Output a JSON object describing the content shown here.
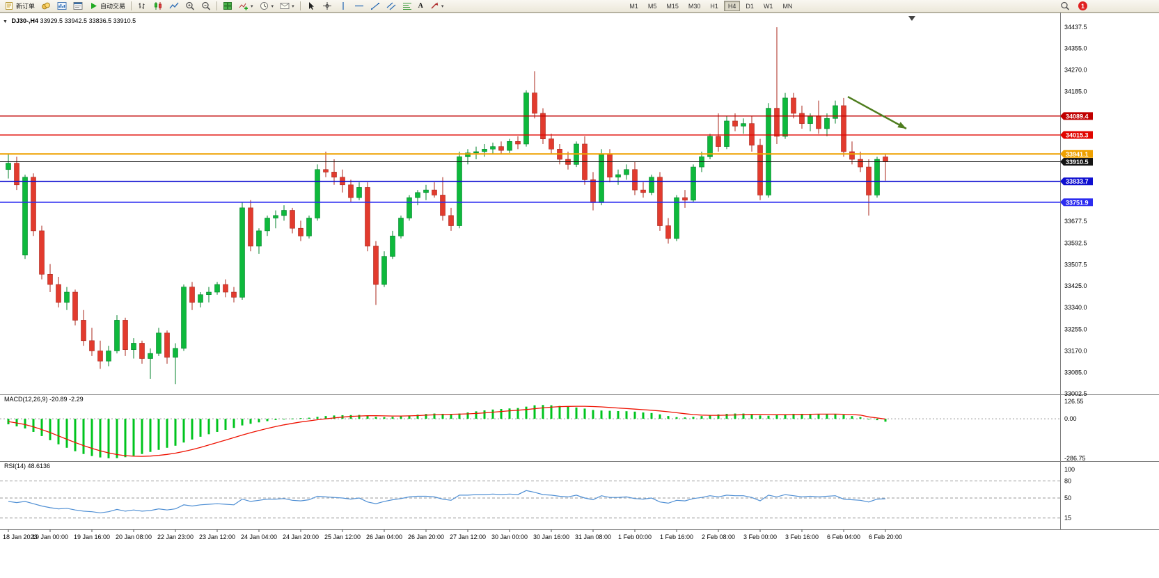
{
  "toolbar": {
    "new_order_label": "新订单",
    "auto_trading_label": "自动交易",
    "text_tool_label": "A",
    "timeframes": [
      "M1",
      "M5",
      "M15",
      "M30",
      "H1",
      "H4",
      "D1",
      "W1",
      "MN"
    ],
    "active_timeframe": "H4",
    "notification_count": "1"
  },
  "chart_header": {
    "symbol_timeframe": "DJ30-,H4",
    "ohlc": "33929.5 33942.5 33836.5 33910.5"
  },
  "macd_header": {
    "label": "MACD(12,26,9)",
    "values": "-20.89 -2.29"
  },
  "rsi_header": {
    "label": "RSI(14)",
    "value": "48.6136"
  },
  "colors": {
    "bull": "#0eb93c",
    "bull_dark": "#00812a",
    "bear": "#e23b2e",
    "bear_dark": "#a8241a",
    "macd_hist": "#00c41e",
    "macd_signal": "#ee1100",
    "rsi_line": "#4f8fd4",
    "axis_text": "#000000"
  },
  "chart_data": [
    {
      "type": "candlestick",
      "symbol": "DJ30-",
      "timeframe": "H4",
      "ylim": [
        33002.5,
        34437.5
      ],
      "y_ticks": [
        34437.5,
        34355.0,
        34270.0,
        34185.0,
        33677.5,
        33592.5,
        33507.5,
        33425.0,
        33340.0,
        33255.0,
        33170.0,
        33085.0,
        33002.5
      ],
      "levels": [
        {
          "price": 34089.4,
          "label": "34089.4",
          "color": "#c00000",
          "width": 1.4
        },
        {
          "price": 34015.3,
          "label": "34015.3",
          "color": "#e10600",
          "width": 1.4
        },
        {
          "price": 33941.1,
          "label": "33941.1",
          "color": "#efa100",
          "width": 2.2
        },
        {
          "price": 33910.5,
          "label": "33910.5",
          "color": "#141414",
          "width": 1,
          "kind": "bid"
        },
        {
          "price": 33833.7,
          "label": "33833.7",
          "color": "#0f0fd0",
          "width": 1.8
        },
        {
          "price": 33751.9,
          "label": "33751.9",
          "color": "#2d2df0",
          "width": 1.8
        }
      ],
      "arrow": {
        "from_index": 100.5,
        "from_price": 34165,
        "to_index": 107.5,
        "to_price": 34040,
        "color": "#4e7d1e"
      },
      "label_every": 5,
      "time_labels": [
        "18 Jan 2023",
        "19 Jan 00:00",
        "19 Jan 16:00",
        "20 Jan 08:00",
        "22 Jan 23:00",
        "23 Jan 12:00",
        "24 Jan 04:00",
        "24 Jan 20:00",
        "25 Jan 12:00",
        "26 Jan 04:00",
        "26 Jan 20:00",
        "27 Jan 12:00",
        "30 Jan 00:00",
        "30 Jan 16:00",
        "31 Jan 08:00",
        "1 Feb 00:00",
        "1 Feb 16:00",
        "2 Feb 08:00",
        "3 Feb 00:00",
        "3 Feb 16:00",
        "6 Feb 04:00",
        "6 Feb 20:00"
      ],
      "candles": [
        [
          33880,
          33940,
          33845,
          33905
        ],
        [
          33905,
          33930,
          33800,
          33820
        ],
        [
          33545,
          33860,
          33530,
          33850
        ],
        [
          33850,
          33865,
          33620,
          33640
        ],
        [
          33640,
          33660,
          33450,
          33470
        ],
        [
          33470,
          33510,
          33400,
          33430
        ],
        [
          33430,
          33460,
          33340,
          33360
        ],
        [
          33360,
          33420,
          33330,
          33400
        ],
        [
          33400,
          33410,
          33270,
          33290
        ],
        [
          33290,
          33330,
          33190,
          33210
        ],
        [
          33210,
          33260,
          33150,
          33170
        ],
        [
          33170,
          33210,
          33100,
          33130
        ],
        [
          33130,
          33190,
          33110,
          33170
        ],
        [
          33170,
          33310,
          33160,
          33290
        ],
        [
          33290,
          33300,
          33150,
          33175
        ],
        [
          33175,
          33220,
          33140,
          33200
        ],
        [
          33200,
          33210,
          33120,
          33140
        ],
        [
          33140,
          33180,
          33060,
          33160
        ],
        [
          33160,
          33260,
          33150,
          33240
        ],
        [
          33240,
          33250,
          33120,
          33145
        ],
        [
          33145,
          33200,
          33040,
          33180
        ],
        [
          33180,
          33430,
          33170,
          33420
        ],
        [
          33420,
          33440,
          33330,
          33360
        ],
        [
          33360,
          33400,
          33340,
          33390
        ],
        [
          33390,
          33420,
          33360,
          33400
        ],
        [
          33400,
          33440,
          33390,
          33430
        ],
        [
          33430,
          33450,
          33380,
          33400
        ],
        [
          33400,
          33420,
          33360,
          33380
        ],
        [
          33380,
          33750,
          33370,
          33730
        ],
        [
          33730,
          33760,
          33560,
          33580
        ],
        [
          33580,
          33650,
          33550,
          33640
        ],
        [
          33640,
          33700,
          33620,
          33690
        ],
        [
          33690,
          33720,
          33650,
          33700
        ],
        [
          33700,
          33740,
          33680,
          33720
        ],
        [
          33720,
          33730,
          33630,
          33650
        ],
        [
          33650,
          33680,
          33600,
          33620
        ],
        [
          33620,
          33700,
          33610,
          33690
        ],
        [
          33690,
          33900,
          33680,
          33880
        ],
        [
          33880,
          33950,
          33850,
          33870
        ],
        [
          33870,
          33920,
          33820,
          33850
        ],
        [
          33850,
          33880,
          33790,
          33820
        ],
        [
          33820,
          33840,
          33750,
          33770
        ],
        [
          33770,
          33830,
          33760,
          33810
        ],
        [
          33810,
          33830,
          33560,
          33580
        ],
        [
          33580,
          33600,
          33350,
          33430
        ],
        [
          33430,
          33560,
          33420,
          33540
        ],
        [
          33540,
          33640,
          33530,
          33620
        ],
        [
          33620,
          33700,
          33610,
          33690
        ],
        [
          33690,
          33780,
          33680,
          33770
        ],
        [
          33770,
          33800,
          33740,
          33790
        ],
        [
          33790,
          33820,
          33760,
          33800
        ],
        [
          33800,
          33830,
          33770,
          33780
        ],
        [
          33780,
          33850,
          33680,
          33700
        ],
        [
          33700,
          33730,
          33640,
          33660
        ],
        [
          33660,
          33950,
          33650,
          33930
        ],
        [
          33930,
          33960,
          33900,
          33945
        ],
        [
          33945,
          33970,
          33920,
          33950
        ],
        [
          33950,
          33980,
          33930,
          33960
        ],
        [
          33960,
          33985,
          33940,
          33970
        ],
        [
          33970,
          33990,
          33940,
          33955
        ],
        [
          33955,
          34000,
          33945,
          33990
        ],
        [
          33990,
          34010,
          33960,
          33980
        ],
        [
          33980,
          34190,
          33970,
          34180
        ],
        [
          34180,
          34265,
          34080,
          34100
        ],
        [
          34100,
          34120,
          33980,
          34000
        ],
        [
          34000,
          34020,
          33940,
          33960
        ],
        [
          33960,
          33980,
          33900,
          33920
        ],
        [
          33920,
          33950,
          33880,
          33900
        ],
        [
          33900,
          33990,
          33890,
          33980
        ],
        [
          33980,
          34010,
          33820,
          33840
        ],
        [
          33840,
          33870,
          33720,
          33750
        ],
        [
          33750,
          33960,
          33740,
          33940
        ],
        [
          33940,
          33960,
          33830,
          33850
        ],
        [
          33850,
          33880,
          33820,
          33860
        ],
        [
          33860,
          33900,
          33840,
          33880
        ],
        [
          33880,
          33910,
          33780,
          33800
        ],
        [
          33800,
          33830,
          33770,
          33790
        ],
        [
          33790,
          33860,
          33780,
          33850
        ],
        [
          33850,
          33870,
          33640,
          33660
        ],
        [
          33660,
          33690,
          33590,
          33610
        ],
        [
          33610,
          33780,
          33600,
          33770
        ],
        [
          33770,
          33800,
          33730,
          33760
        ],
        [
          33760,
          33900,
          33750,
          33890
        ],
        [
          33890,
          33950,
          33870,
          33930
        ],
        [
          33930,
          34020,
          33920,
          34010
        ],
        [
          34010,
          34100,
          33950,
          33970
        ],
        [
          33970,
          34090,
          33960,
          34070
        ],
        [
          34070,
          34100,
          34030,
          34050
        ],
        [
          34050,
          34080,
          34020,
          34060
        ],
        [
          34060,
          34090,
          33950,
          33975
        ],
        [
          33975,
          34000,
          33760,
          33780
        ],
        [
          33780,
          34140,
          33770,
          34120
        ],
        [
          34120,
          34437,
          33980,
          34010
        ],
        [
          34010,
          34180,
          34000,
          34160
        ],
        [
          34160,
          34180,
          34080,
          34100
        ],
        [
          34100,
          34130,
          34040,
          34060
        ],
        [
          34060,
          34100,
          34030,
          34090
        ],
        [
          34090,
          34150,
          34020,
          34040
        ],
        [
          34040,
          34100,
          34010,
          34080
        ],
        [
          34080,
          34150,
          34060,
          34130
        ],
        [
          34130,
          34160,
          33930,
          33950
        ],
        [
          33950,
          33990,
          33900,
          33920
        ],
        [
          33920,
          33950,
          33870,
          33890
        ],
        [
          33890,
          33920,
          33700,
          33780
        ],
        [
          33780,
          33930,
          33770,
          33920
        ],
        [
          33929.5,
          33942.5,
          33836.5,
          33910.5
        ]
      ]
    },
    {
      "type": "bar",
      "label": "MACD(12,26,9)",
      "current": "-20.89 -2.29",
      "ylim": [
        -286.75,
        126.55
      ],
      "axis_values": [
        126.55,
        0,
        -286.75
      ],
      "histogram": [
        -40,
        -55,
        -70,
        -95,
        -125,
        -155,
        -185,
        -210,
        -235,
        -255,
        -270,
        -280,
        -286,
        -285,
        -278,
        -268,
        -255,
        -240,
        -225,
        -210,
        -195,
        -172,
        -150,
        -130,
        -112,
        -95,
        -80,
        -66,
        -48,
        -36,
        -26,
        -17,
        -9,
        -3,
        2,
        5,
        8,
        14,
        20,
        24,
        26,
        27,
        28,
        22,
        14,
        12,
        14,
        18,
        24,
        30,
        35,
        38,
        36,
        32,
        38,
        46,
        54,
        61,
        67,
        71,
        75,
        78,
        88,
        98,
        100,
        98,
        93,
        87,
        82,
        74,
        64,
        60,
        58,
        56,
        55,
        52,
        46,
        42,
        32,
        20,
        12,
        10,
        14,
        20,
        28,
        32,
        36,
        38,
        38,
        34,
        24,
        22,
        26,
        32,
        36,
        36,
        36,
        34,
        34,
        36,
        28,
        20,
        12,
        0,
        -10,
        -20.89
      ],
      "signal": [
        -20,
        -30,
        -42,
        -58,
        -78,
        -100,
        -124,
        -148,
        -172,
        -194,
        -214,
        -232,
        -247,
        -259,
        -267,
        -271,
        -272,
        -270,
        -265,
        -258,
        -249,
        -237,
        -223,
        -207,
        -190,
        -172,
        -154,
        -136,
        -118,
        -101,
        -85,
        -70,
        -56,
        -44,
        -33,
        -23,
        -15,
        -7,
        0,
        6,
        12,
        17,
        20,
        22,
        22,
        21,
        20,
        20,
        21,
        23,
        26,
        29,
        31,
        33,
        34,
        36,
        39,
        43,
        48,
        53,
        58,
        62,
        67,
        73,
        79,
        84,
        88,
        90,
        91,
        91,
        89,
        86,
        82,
        78,
        74,
        70,
        66,
        62,
        57,
        51,
        44,
        37,
        31,
        27,
        25,
        25,
        26,
        28,
        30,
        32,
        32,
        31,
        30,
        30,
        31,
        32,
        33,
        34,
        34,
        34,
        33,
        31,
        27,
        14,
        6,
        -2.29
      ]
    },
    {
      "type": "line",
      "label": "RSI(14)",
      "current": "48.6136",
      "ylim": [
        0,
        100
      ],
      "axis_values": [
        100,
        80,
        50,
        15
      ],
      "levels": [
        80,
        50,
        15
      ],
      "values": [
        44,
        42,
        44,
        40,
        36,
        33,
        31,
        32,
        29,
        27,
        26,
        24,
        26,
        30,
        27,
        29,
        27,
        28,
        31,
        29,
        31,
        38,
        36,
        38,
        39,
        40,
        39,
        38,
        48,
        44,
        46,
        48,
        48,
        49,
        46,
        45,
        47,
        53,
        52,
        51,
        50,
        48,
        50,
        43,
        40,
        44,
        47,
        49,
        52,
        53,
        53,
        52,
        48,
        46,
        55,
        55,
        56,
        56,
        57,
        56,
        57,
        56,
        63,
        60,
        56,
        55,
        53,
        52,
        55,
        50,
        47,
        54,
        51,
        51,
        52,
        49,
        48,
        50,
        43,
        41,
        46,
        45,
        49,
        51,
        54,
        52,
        55,
        54,
        54,
        51,
        45,
        55,
        52,
        56,
        54,
        52,
        53,
        52,
        53,
        54,
        48,
        47,
        46,
        43,
        48,
        48.61
      ]
    }
  ]
}
